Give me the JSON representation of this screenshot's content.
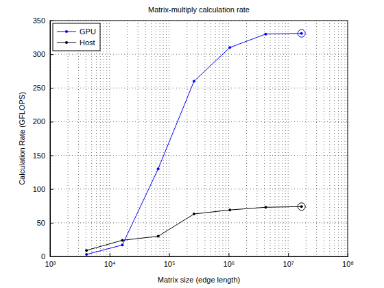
{
  "chart_data": {
    "type": "line",
    "title": "Matrix-multiply calculation rate",
    "x_label": "Matrix size (edge length)",
    "y_label": "Calculation Rate (GFLOPS)",
    "x": [
      4096,
      16384,
      65536,
      262144,
      1048576,
      4194304,
      16777216
    ],
    "series": [
      {
        "name": "GPU",
        "color": "#0000ff",
        "marker": "dot",
        "line_style": "solid",
        "values": [
          3,
          17,
          130,
          260,
          310,
          330,
          331
        ]
      },
      {
        "name": "Host",
        "color": "#000000",
        "marker": "dot",
        "line_style": "solid",
        "values": [
          9,
          24,
          30,
          63,
          69,
          73,
          74
        ]
      }
    ],
    "xlim": [
      1000,
      100000000
    ],
    "xticks": [
      {
        "value": 1000,
        "label": "10³"
      },
      {
        "value": 10000,
        "label": "10⁴"
      },
      {
        "value": 100000,
        "label": "10⁵"
      },
      {
        "value": 1000000,
        "label": "10⁶"
      },
      {
        "value": 10000000,
        "label": "10⁷"
      },
      {
        "value": 100000000,
        "label": "10⁸"
      }
    ],
    "ylim": [
      0,
      350
    ],
    "yticks": [
      0,
      50,
      100,
      150,
      200,
      250,
      300,
      350
    ],
    "log": "x",
    "grid": true,
    "legend": "top-left"
  }
}
